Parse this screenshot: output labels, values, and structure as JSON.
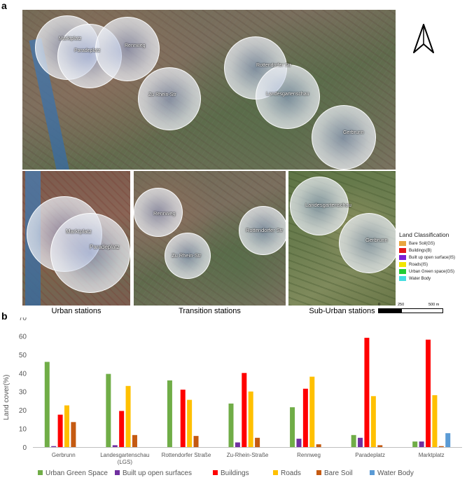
{
  "panel_a_letter": "a",
  "panel_b_letter": "b",
  "map": {
    "main_labels": [
      "Marktplatz",
      "Paradeplatz",
      "Rennweg",
      "Zu Rhein-Str",
      "Rottendorfer Str",
      "Landesgartenschau",
      "Gerbrunn"
    ],
    "urban_labels": [
      "Marktplatz",
      "Paradeplatz"
    ],
    "transition_labels": [
      "Rennweg",
      "Rottendorfer Str",
      "Zu Rhein-Str"
    ],
    "suburban_labels": [
      "Landesgartenschau",
      "Gerbrunn"
    ],
    "captions": [
      "Urban stations",
      "Transition stations",
      "Sub-Urban stations"
    ],
    "scale": [
      "0",
      "250",
      "500 m"
    ],
    "legend_title": "Land Classification",
    "legend": [
      {
        "label": "Bare Soil(GS)",
        "color": "#e8a640"
      },
      {
        "label": "Buildings(B)",
        "color": "#e3171a"
      },
      {
        "label": "Built up open surface(IS)",
        "color": "#7b1fd6"
      },
      {
        "label": "Roads(IS)",
        "color": "#f2e600"
      },
      {
        "label": "Urban Green space(GS)",
        "color": "#22cc33"
      },
      {
        "label": "Water Body",
        "color": "#44dde0"
      }
    ]
  },
  "chart_data": {
    "type": "bar",
    "ylabel": "Land cover(%)",
    "ylim": [
      0,
      70
    ],
    "yticks": [
      0,
      10,
      20,
      30,
      40,
      50,
      60,
      70
    ],
    "grid": false,
    "legend_position": "bottom",
    "categories": [
      "Gerbrunn",
      "Landesgartenschau (LGS)",
      "Rottendorfer Straße",
      "Zu-Rhein-Straße",
      "Rennweg",
      "Paradeplatz",
      "Marktplatz"
    ],
    "category_lines": [
      [
        "Gerbrunn"
      ],
      [
        "Landesgartenschau",
        "(LGS)"
      ],
      [
        "Rottendorfer Straße"
      ],
      [
        "Zu-Rhein-Straße"
      ],
      [
        "Rennweg"
      ],
      [
        "Paradeplatz"
      ],
      [
        "Marktplatz"
      ]
    ],
    "series": [
      {
        "name": "Urban Green Space",
        "color": "#70ad47",
        "values": [
          46,
          39.5,
          36,
          23.5,
          21.5,
          6.5,
          3
        ]
      },
      {
        "name": "Built up open surfaces",
        "color": "#7030a0",
        "values": [
          0.5,
          1,
          0,
          2.5,
          4.5,
          5,
          3
        ]
      },
      {
        "name": "Buildings",
        "color": "#ff0000",
        "values": [
          17.5,
          19.5,
          31,
          40,
          31.5,
          59,
          58
        ]
      },
      {
        "name": "Roads",
        "color": "#ffc000",
        "values": [
          22.5,
          33,
          25.5,
          30,
          38,
          27.5,
          28
        ]
      },
      {
        "name": "Bare Soil",
        "color": "#c55a11",
        "values": [
          13.5,
          6.5,
          6,
          5,
          1.5,
          1,
          0.5
        ]
      },
      {
        "name": "Water Body",
        "color": "#5b9bd5",
        "values": [
          0,
          0,
          0,
          0,
          0,
          0,
          7.5
        ]
      }
    ]
  }
}
